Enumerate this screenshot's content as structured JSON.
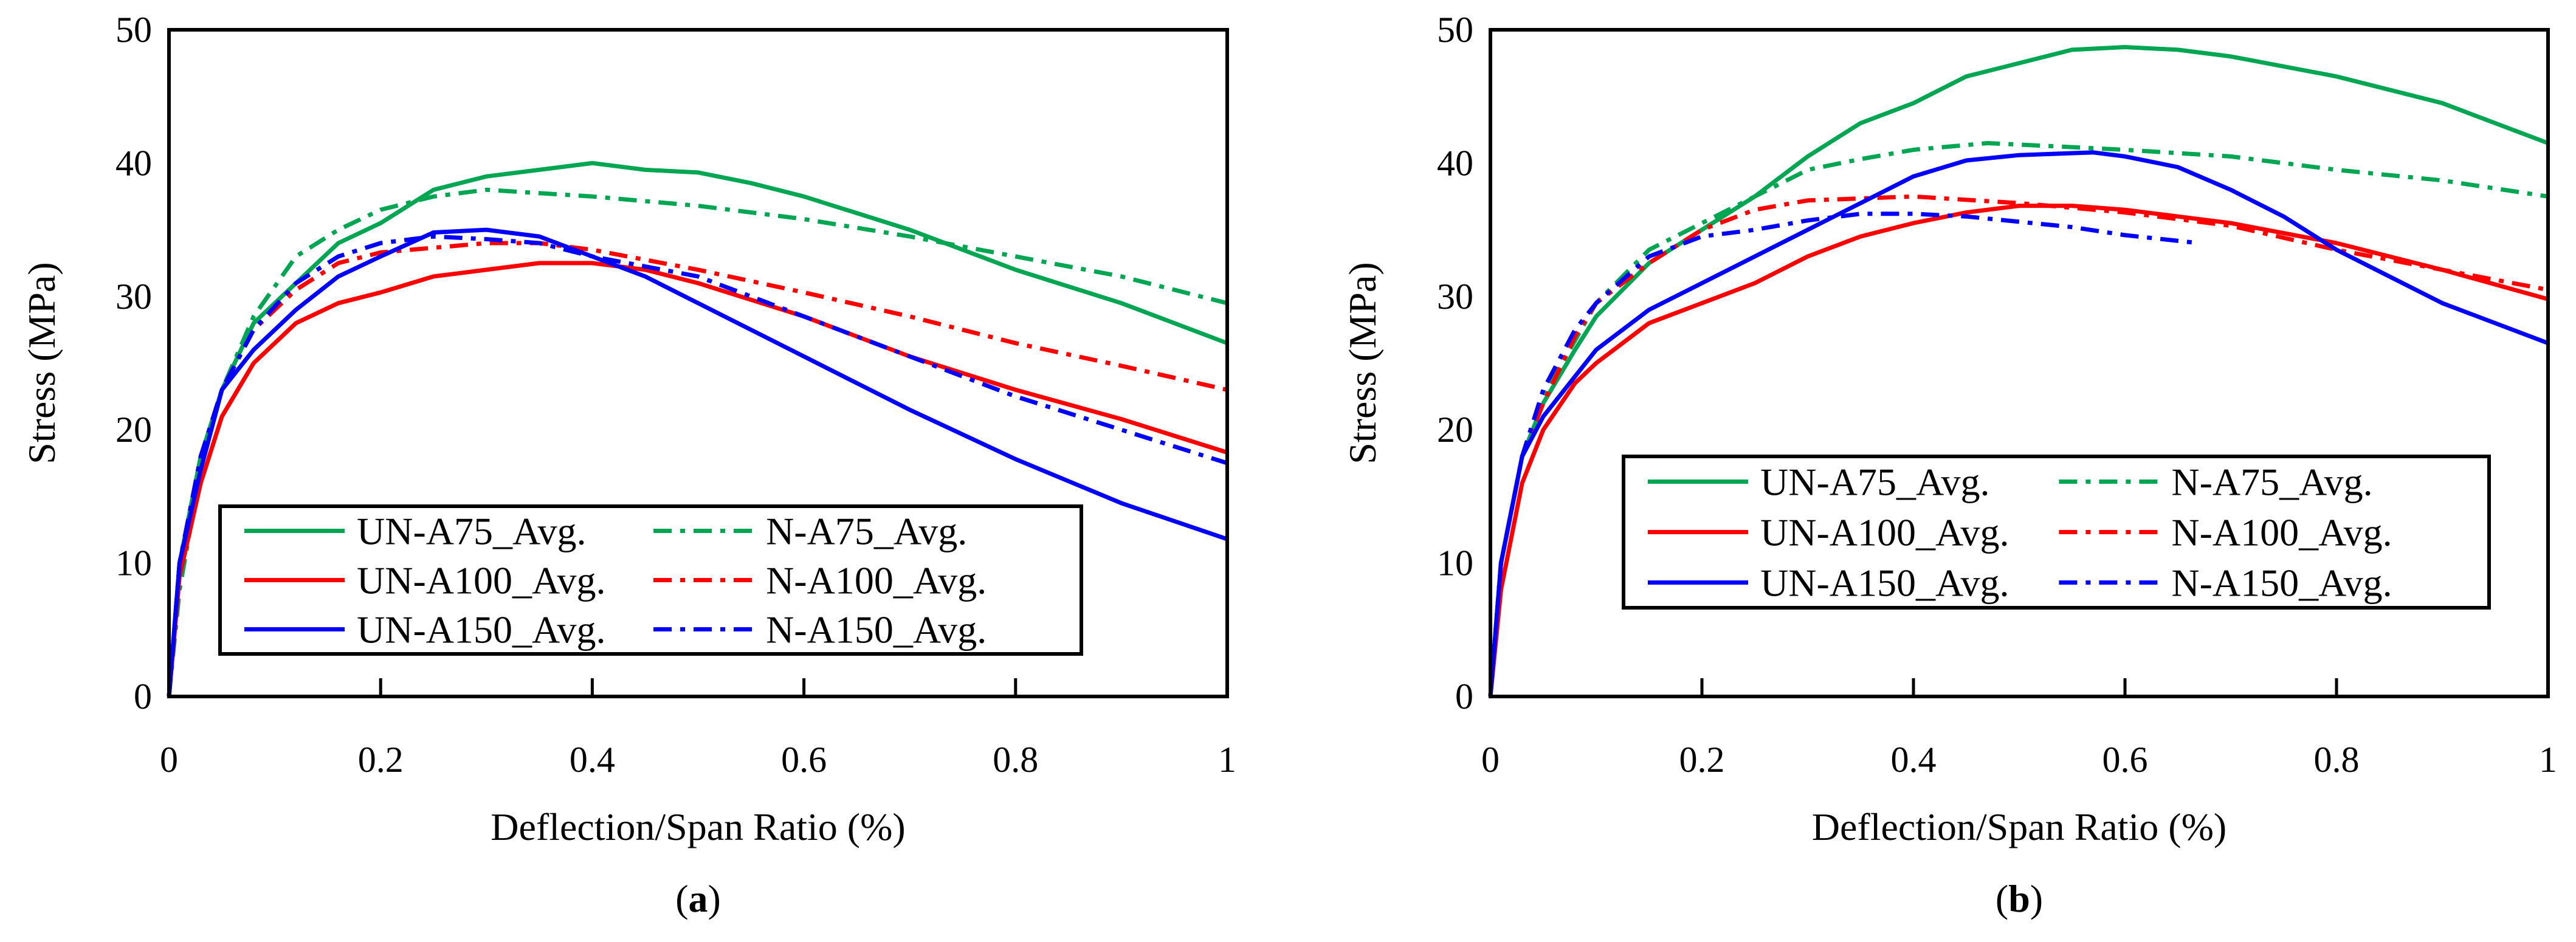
{
  "colors": {
    "green": "#00a651",
    "red": "#ff0000",
    "blue": "#0000ff"
  },
  "chart_data": [
    {
      "type": "line",
      "panel_label": "a",
      "xlabel": "Deflection/Span Ratio (%)",
      "ylabel": "Stress (MPa)",
      "xlim": [
        0,
        1
      ],
      "ylim": [
        0,
        50
      ],
      "xticks": [
        "0",
        "0.2",
        "0.4",
        "0.6",
        "0.8",
        "1"
      ],
      "yticks": [
        "0",
        "10",
        "20",
        "30",
        "40",
        "50"
      ],
      "grid": false,
      "legend_position": "bottom-left",
      "series": [
        {
          "name": "UN-A75_Avg.",
          "color": "green",
          "style": "solid",
          "points": [
            [
              0,
              0
            ],
            [
              0.01,
              10
            ],
            [
              0.03,
              18
            ],
            [
              0.05,
              23
            ],
            [
              0.08,
              28
            ],
            [
              0.12,
              31
            ],
            [
              0.16,
              34
            ],
            [
              0.2,
              35.5
            ],
            [
              0.25,
              38
            ],
            [
              0.3,
              39
            ],
            [
              0.35,
              39.5
            ],
            [
              0.4,
              40
            ],
            [
              0.45,
              39.5
            ],
            [
              0.5,
              39.3
            ],
            [
              0.55,
              38.5
            ],
            [
              0.6,
              37.5
            ],
            [
              0.7,
              35
            ],
            [
              0.8,
              32
            ],
            [
              0.9,
              29.5
            ],
            [
              1,
              26.5
            ]
          ]
        },
        {
          "name": "N-A75_Avg.",
          "color": "green",
          "style": "dashdot",
          "points": [
            [
              0,
              0
            ],
            [
              0.01,
              8
            ],
            [
              0.03,
              17
            ],
            [
              0.05,
              23
            ],
            [
              0.08,
              28.5
            ],
            [
              0.12,
              33
            ],
            [
              0.16,
              35
            ],
            [
              0.2,
              36.5
            ],
            [
              0.25,
              37.5
            ],
            [
              0.3,
              38
            ],
            [
              0.4,
              37.5
            ],
            [
              0.5,
              36.8
            ],
            [
              0.6,
              35.8
            ],
            [
              0.7,
              34.5
            ],
            [
              0.8,
              33
            ],
            [
              0.9,
              31.5
            ],
            [
              1,
              29.5
            ]
          ]
        },
        {
          "name": "UN-A100_Avg.",
          "color": "red",
          "style": "solid",
          "points": [
            [
              0,
              0
            ],
            [
              0.01,
              9
            ],
            [
              0.03,
              16
            ],
            [
              0.05,
              21
            ],
            [
              0.08,
              25
            ],
            [
              0.12,
              28
            ],
            [
              0.16,
              29.5
            ],
            [
              0.2,
              30.3
            ],
            [
              0.25,
              31.5
            ],
            [
              0.3,
              32
            ],
            [
              0.35,
              32.5
            ],
            [
              0.4,
              32.5
            ],
            [
              0.45,
              32
            ],
            [
              0.5,
              31
            ],
            [
              0.6,
              28.5
            ],
            [
              0.7,
              25.5
            ],
            [
              0.8,
              23
            ],
            [
              0.9,
              20.8
            ],
            [
              1,
              18.3
            ]
          ]
        },
        {
          "name": "N-A100_Avg.",
          "color": "red",
          "style": "dashdot",
          "points": [
            [
              0,
              0
            ],
            [
              0.01,
              10
            ],
            [
              0.03,
              18
            ],
            [
              0.05,
              23
            ],
            [
              0.08,
              27.5
            ],
            [
              0.12,
              30.5
            ],
            [
              0.16,
              32.5
            ],
            [
              0.2,
              33.3
            ],
            [
              0.3,
              34
            ],
            [
              0.35,
              34
            ],
            [
              0.4,
              33.5
            ],
            [
              0.5,
              32
            ],
            [
              0.6,
              30.3
            ],
            [
              0.7,
              28.5
            ],
            [
              0.8,
              26.5
            ],
            [
              0.9,
              24.8
            ],
            [
              1,
              23
            ]
          ]
        },
        {
          "name": "UN-A150_Avg.",
          "color": "blue",
          "style": "solid",
          "points": [
            [
              0,
              0
            ],
            [
              0.01,
              10
            ],
            [
              0.03,
              17
            ],
            [
              0.05,
              23
            ],
            [
              0.08,
              26
            ],
            [
              0.12,
              29
            ],
            [
              0.16,
              31.5
            ],
            [
              0.2,
              33
            ],
            [
              0.25,
              34.8
            ],
            [
              0.3,
              35
            ],
            [
              0.35,
              34.5
            ],
            [
              0.4,
              33
            ],
            [
              0.45,
              31.5
            ],
            [
              0.5,
              29.5
            ],
            [
              0.6,
              25.5
            ],
            [
              0.7,
              21.5
            ],
            [
              0.8,
              17.8
            ],
            [
              0.9,
              14.5
            ],
            [
              1,
              11.8
            ]
          ]
        },
        {
          "name": "N-A150_Avg.",
          "color": "blue",
          "style": "dashdot",
          "points": [
            [
              0,
              0
            ],
            [
              0.01,
              10
            ],
            [
              0.03,
              18
            ],
            [
              0.05,
              23
            ],
            [
              0.08,
              27.5
            ],
            [
              0.12,
              31
            ],
            [
              0.16,
              33
            ],
            [
              0.2,
              34
            ],
            [
              0.25,
              34.5
            ],
            [
              0.3,
              34.3
            ],
            [
              0.35,
              34
            ],
            [
              0.4,
              33
            ],
            [
              0.5,
              31.5
            ],
            [
              0.6,
              28.5
            ],
            [
              0.7,
              25.5
            ],
            [
              0.8,
              22.5
            ],
            [
              0.9,
              20
            ],
            [
              1,
              17.5
            ]
          ]
        }
      ]
    },
    {
      "type": "line",
      "panel_label": "b",
      "xlabel": "Deflection/Span Ratio (%)",
      "ylabel": "Stress (MPa)",
      "xlim": [
        0,
        1
      ],
      "ylim": [
        0,
        50
      ],
      "xticks": [
        "0",
        "0.2",
        "0.4",
        "0.6",
        "0.8",
        "1"
      ],
      "yticks": [
        "0",
        "10",
        "20",
        "30",
        "40",
        "50"
      ],
      "grid": false,
      "legend_position": "bottom-center",
      "series": [
        {
          "name": "UN-A75_Avg.",
          "color": "green",
          "style": "solid",
          "points": [
            [
              0,
              0
            ],
            [
              0.01,
              10
            ],
            [
              0.03,
              18
            ],
            [
              0.05,
              22
            ],
            [
              0.08,
              26
            ],
            [
              0.1,
              28.5
            ],
            [
              0.15,
              32.5
            ],
            [
              0.2,
              35
            ],
            [
              0.25,
              37.5
            ],
            [
              0.3,
              40.5
            ],
            [
              0.35,
              43
            ],
            [
              0.4,
              44.5
            ],
            [
              0.45,
              46.5
            ],
            [
              0.5,
              47.5
            ],
            [
              0.55,
              48.5
            ],
            [
              0.6,
              48.7
            ],
            [
              0.65,
              48.5
            ],
            [
              0.7,
              48
            ],
            [
              0.8,
              46.5
            ],
            [
              0.9,
              44.5
            ],
            [
              1,
              41.5
            ]
          ]
        },
        {
          "name": "N-A75_Avg.",
          "color": "green",
          "style": "dashdot",
          "points": [
            [
              0,
              0
            ],
            [
              0.01,
              10
            ],
            [
              0.03,
              18
            ],
            [
              0.05,
              22.5
            ],
            [
              0.1,
              29.5
            ],
            [
              0.15,
              33.5
            ],
            [
              0.2,
              35.5
            ],
            [
              0.25,
              37.5
            ],
            [
              0.3,
              39.5
            ],
            [
              0.35,
              40.3
            ],
            [
              0.4,
              41
            ],
            [
              0.47,
              41.5
            ],
            [
              0.55,
              41.2
            ],
            [
              0.6,
              41
            ],
            [
              0.7,
              40.5
            ],
            [
              0.8,
              39.5
            ],
            [
              0.9,
              38.7
            ],
            [
              1,
              37.5
            ]
          ]
        },
        {
          "name": "UN-A100_Avg.",
          "color": "red",
          "style": "solid",
          "points": [
            [
              0,
              0
            ],
            [
              0.01,
              8
            ],
            [
              0.03,
              16
            ],
            [
              0.05,
              20
            ],
            [
              0.08,
              23.5
            ],
            [
              0.1,
              25
            ],
            [
              0.15,
              28
            ],
            [
              0.2,
              29.5
            ],
            [
              0.25,
              31
            ],
            [
              0.3,
              33
            ],
            [
              0.35,
              34.5
            ],
            [
              0.4,
              35.5
            ],
            [
              0.45,
              36.3
            ],
            [
              0.5,
              36.8
            ],
            [
              0.55,
              36.8
            ],
            [
              0.6,
              36.5
            ],
            [
              0.7,
              35.5
            ],
            [
              0.8,
              34
            ],
            [
              0.9,
              32
            ],
            [
              1,
              29.8
            ]
          ]
        },
        {
          "name": "N-A100_Avg.",
          "color": "red",
          "style": "dashdot",
          "points": [
            [
              0,
              0
            ],
            [
              0.01,
              10
            ],
            [
              0.03,
              18
            ],
            [
              0.05,
              22
            ],
            [
              0.08,
              27
            ],
            [
              0.1,
              29.5
            ],
            [
              0.15,
              32.5
            ],
            [
              0.2,
              35
            ],
            [
              0.25,
              36.5
            ],
            [
              0.3,
              37.2
            ],
            [
              0.4,
              37.5
            ],
            [
              0.5,
              37
            ],
            [
              0.6,
              36.3
            ],
            [
              0.7,
              35.3
            ],
            [
              0.8,
              33.5
            ],
            [
              0.9,
              32
            ],
            [
              1,
              30.5
            ]
          ]
        },
        {
          "name": "UN-A150_Avg.",
          "color": "blue",
          "style": "solid",
          "points": [
            [
              0,
              0
            ],
            [
              0.01,
              10
            ],
            [
              0.03,
              18
            ],
            [
              0.05,
              21
            ],
            [
              0.08,
              24
            ],
            [
              0.1,
              26
            ],
            [
              0.15,
              29
            ],
            [
              0.2,
              31
            ],
            [
              0.25,
              33
            ],
            [
              0.3,
              35
            ],
            [
              0.35,
              37
            ],
            [
              0.4,
              39
            ],
            [
              0.45,
              40.2
            ],
            [
              0.5,
              40.6
            ],
            [
              0.57,
              40.8
            ],
            [
              0.6,
              40.5
            ],
            [
              0.65,
              39.7
            ],
            [
              0.7,
              38
            ],
            [
              0.75,
              36
            ],
            [
              0.8,
              33.5
            ],
            [
              0.9,
              29.5
            ],
            [
              1,
              26.5
            ]
          ]
        },
        {
          "name": "N-A150_Avg.",
          "color": "blue",
          "style": "dashdot",
          "points": [
            [
              0,
              0
            ],
            [
              0.01,
              10
            ],
            [
              0.03,
              18
            ],
            [
              0.05,
              23
            ],
            [
              0.08,
              27.5
            ],
            [
              0.1,
              29.5
            ],
            [
              0.15,
              33
            ],
            [
              0.2,
              34.5
            ],
            [
              0.25,
              35
            ],
            [
              0.3,
              35.7
            ],
            [
              0.35,
              36.2
            ],
            [
              0.4,
              36.2
            ],
            [
              0.45,
              36
            ],
            [
              0.5,
              35.6
            ],
            [
              0.55,
              35.2
            ],
            [
              0.6,
              34.6
            ],
            [
              0.67,
              34
            ]
          ]
        }
      ]
    }
  ]
}
